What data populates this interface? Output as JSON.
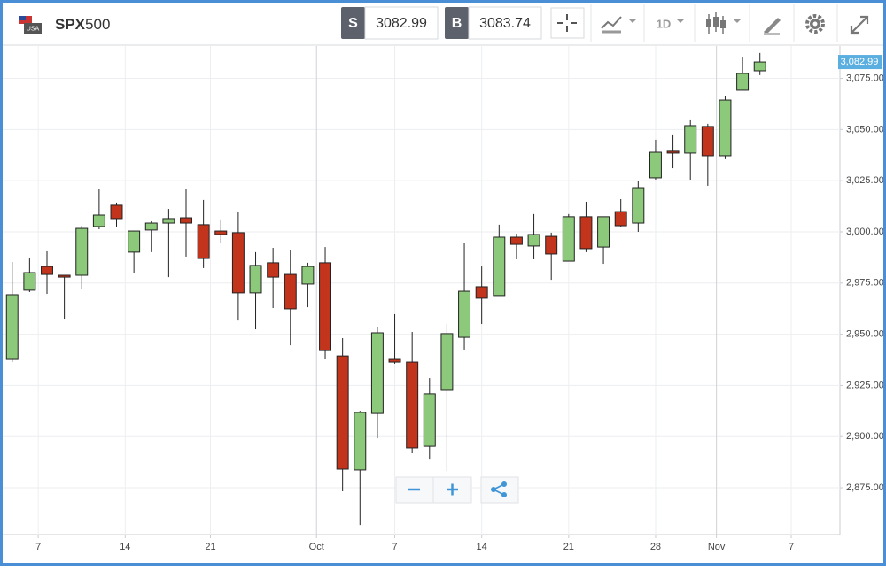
{
  "toolbar": {
    "flag_text": "USA",
    "symbol": "SPX",
    "symbol_number": "500",
    "sell_label": "S",
    "sell_price": "3082.99",
    "buy_label": "B",
    "buy_price": "3083.74",
    "interval": "1D"
  },
  "chart_data": {
    "type": "candlestick",
    "open": [
      2937.7,
      2971.5,
      2983.1,
      2978.8,
      2978.8,
      3002.6,
      3013.0,
      2990.1,
      3000.9,
      3004.3,
      3006.9,
      3003.5,
      3000.4,
      2999.6,
      2970.2,
      2984.9,
      2979.2,
      2974.5,
      2984.9,
      2939.4,
      2883.7,
      2911.3,
      2937.7,
      2936.4,
      2895.3,
      2922.6,
      2948.5,
      2973.2,
      2968.9,
      2997.4,
      2993.1,
      2997.8,
      2985.7,
      3007.4,
      2992.6,
      3009.9,
      3004.3,
      3026.4,
      3039.4,
      3038.5,
      3051.5,
      3037.2,
      3069.2,
      3078.7
    ],
    "high": [
      2985.3,
      2987.0,
      2990.5,
      2978.8,
      3003.0,
      3020.8,
      3014.3,
      3000.4,
      3005.2,
      3011.2,
      3020.8,
      3015.6,
      3006.1,
      3009.5,
      2990.1,
      2992.2,
      2990.9,
      2984.9,
      2992.6,
      2948.1,
      2912.6,
      2953.3,
      2959.8,
      2951.1,
      2928.6,
      2955.0,
      2994.4,
      2983.1,
      3003.5,
      2999.1,
      3008.7,
      2999.6,
      3008.7,
      3014.7,
      3007.4,
      3016.0,
      3024.7,
      3045.0,
      3047.6,
      3054.5,
      3052.8,
      3066.2,
      3085.6,
      3087.4
    ],
    "low": [
      2936.4,
      2970.6,
      2969.7,
      2957.6,
      2971.9,
      3001.3,
      3002.6,
      2980.1,
      2990.1,
      2977.9,
      2987.9,
      2982.3,
      2994.4,
      2956.7,
      2952.4,
      2962.8,
      2944.6,
      2963.2,
      2937.7,
      2873.3,
      2856.8,
      2899.2,
      2935.6,
      2891.9,
      2888.8,
      2883.2,
      2942.5,
      2955.0,
      2968.9,
      2986.6,
      2986.6,
      2976.6,
      2985.7,
      2990.1,
      2984.4,
      3002.6,
      3000.0,
      3025.5,
      3031.1,
      3025.5,
      3022.5,
      3035.5,
      3069.2,
      3076.6
    ],
    "close": [
      2969.3,
      2980.1,
      2979.2,
      2977.9,
      3001.7,
      3008.2,
      3006.5,
      3000.4,
      3004.3,
      3006.5,
      3004.3,
      2987.0,
      2998.7,
      2970.2,
      2983.6,
      2977.9,
      2962.4,
      2983.1,
      2942.0,
      2884.1,
      2911.8,
      2950.7,
      2936.4,
      2894.5,
      2920.9,
      2950.3,
      2971.0,
      2967.6,
      2997.4,
      2993.9,
      2998.7,
      2989.2,
      3007.4,
      2991.8,
      3007.4,
      3003.0,
      3021.6,
      3038.9,
      3038.5,
      3051.9,
      3037.2,
      3064.4,
      3077.4,
      3082.99
    ],
    "up_color": "#8dc97a",
    "down_color": "#c2341c",
    "xlim": [
      -0.7,
      47.6
    ],
    "xticks": [
      {
        "value": 1.5,
        "label": "7"
      },
      {
        "value": 6.5,
        "label": "14"
      },
      {
        "value": 11.4,
        "label": "21"
      },
      {
        "value": 17.5,
        "label": "Oct"
      },
      {
        "value": 22,
        "label": "7"
      },
      {
        "value": 27,
        "label": "14"
      },
      {
        "value": 32,
        "label": "21"
      },
      {
        "value": 37,
        "label": "28"
      },
      {
        "value": 40.5,
        "label": "Nov"
      },
      {
        "value": 44.8,
        "label": "7"
      }
    ],
    "ylim": [
      2852.1,
      3090.8
    ],
    "yticks": [
      {
        "value": 2875,
        "label": "2,875.00"
      },
      {
        "value": 2900,
        "label": "2,900.00"
      },
      {
        "value": 2925,
        "label": "2,925.00"
      },
      {
        "value": 2950,
        "label": "2,950.00"
      },
      {
        "value": 2975,
        "label": "2,975.00"
      },
      {
        "value": 3000,
        "label": "3,000.00"
      },
      {
        "value": 3025,
        "label": "3,025.00"
      },
      {
        "value": 3050,
        "label": "3,050.00"
      },
      {
        "value": 3075,
        "label": "3,075.00"
      }
    ],
    "last_price": {
      "value": 3082.99,
      "label": "3,082.99"
    },
    "grid": true
  }
}
